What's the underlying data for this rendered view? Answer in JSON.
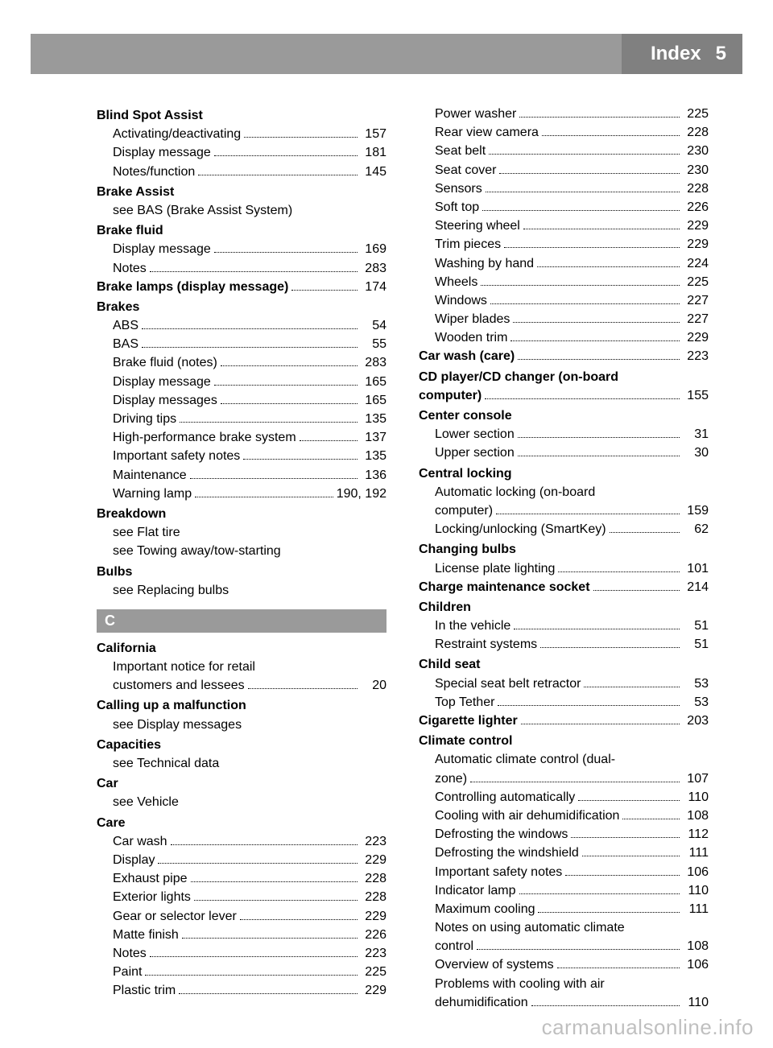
{
  "header": {
    "index_label": "Index",
    "page_number": "5"
  },
  "watermark": "carmanualsonline.info",
  "colors": {
    "top_bar": "#9a9a9a",
    "index_bar": "#808080",
    "header_text": "#ffffff",
    "section_bg": "#9a9a9a"
  },
  "col1": [
    {
      "type": "heading",
      "text": "Blind Spot Assist"
    },
    {
      "type": "sub",
      "text": "Activating/deactivating",
      "page": "157"
    },
    {
      "type": "sub",
      "text": "Display message",
      "page": "181"
    },
    {
      "type": "sub",
      "text": "Notes/function",
      "page": "145"
    },
    {
      "type": "heading",
      "text": "Brake Assist"
    },
    {
      "type": "subtext",
      "text": "see BAS (Brake Assist System)"
    },
    {
      "type": "heading",
      "text": "Brake fluid"
    },
    {
      "type": "sub",
      "text": "Display message",
      "page": "169"
    },
    {
      "type": "sub",
      "text": "Notes",
      "page": "283"
    },
    {
      "type": "boldrow",
      "text": "Brake lamps (display message)",
      "page": "174"
    },
    {
      "type": "heading",
      "text": "Brakes"
    },
    {
      "type": "sub",
      "text": "ABS",
      "page": "54"
    },
    {
      "type": "sub",
      "text": "BAS",
      "page": "55"
    },
    {
      "type": "sub",
      "text": "Brake fluid (notes)",
      "page": "283"
    },
    {
      "type": "sub",
      "text": "Display message",
      "page": "165"
    },
    {
      "type": "sub",
      "text": "Display messages",
      "page": "165"
    },
    {
      "type": "sub",
      "text": "Driving tips",
      "page": "135"
    },
    {
      "type": "sub",
      "text": "High-performance brake system",
      "page": "137"
    },
    {
      "type": "sub",
      "text": "Important safety notes",
      "page": "135"
    },
    {
      "type": "sub",
      "text": "Maintenance",
      "page": "136"
    },
    {
      "type": "sub",
      "text": "Warning lamp",
      "page": "190, 192"
    },
    {
      "type": "heading",
      "text": "Breakdown"
    },
    {
      "type": "subtext",
      "text": "see Flat tire"
    },
    {
      "type": "subtext",
      "text": "see Towing away/tow-starting"
    },
    {
      "type": "heading",
      "text": "Bulbs"
    },
    {
      "type": "subtext",
      "text": "see Replacing bulbs"
    },
    {
      "type": "section",
      "text": "C"
    },
    {
      "type": "heading",
      "text": "California"
    },
    {
      "type": "subtext",
      "text": "Important notice for retail"
    },
    {
      "type": "sub",
      "text": "customers and lessees",
      "page": "20"
    },
    {
      "type": "heading",
      "text": "Calling up a malfunction"
    },
    {
      "type": "subtext",
      "text": "see Display messages"
    },
    {
      "type": "heading",
      "text": "Capacities"
    },
    {
      "type": "subtext",
      "text": "see Technical data"
    },
    {
      "type": "heading",
      "text": "Car"
    },
    {
      "type": "subtext",
      "text": "see Vehicle"
    },
    {
      "type": "heading",
      "text": "Care"
    },
    {
      "type": "sub",
      "text": "Car wash",
      "page": "223"
    },
    {
      "type": "sub",
      "text": "Display",
      "page": "229"
    },
    {
      "type": "sub",
      "text": "Exhaust pipe",
      "page": "228"
    },
    {
      "type": "sub",
      "text": "Exterior lights",
      "page": "228"
    },
    {
      "type": "sub",
      "text": "Gear or selector lever",
      "page": "229"
    },
    {
      "type": "sub",
      "text": "Matte finish",
      "page": "226"
    },
    {
      "type": "sub",
      "text": "Notes",
      "page": "223"
    },
    {
      "type": "sub",
      "text": "Paint",
      "page": "225"
    },
    {
      "type": "sub",
      "text": "Plastic trim",
      "page": "229"
    }
  ],
  "col2": [
    {
      "type": "sub",
      "text": "Power washer",
      "page": "225"
    },
    {
      "type": "sub",
      "text": "Rear view camera",
      "page": "228"
    },
    {
      "type": "sub",
      "text": "Seat belt",
      "page": "230"
    },
    {
      "type": "sub",
      "text": "Seat cover",
      "page": "230"
    },
    {
      "type": "sub",
      "text": "Sensors",
      "page": "228"
    },
    {
      "type": "sub",
      "text": "Soft top",
      "page": "226"
    },
    {
      "type": "sub",
      "text": "Steering wheel",
      "page": "229"
    },
    {
      "type": "sub",
      "text": "Trim pieces",
      "page": "229"
    },
    {
      "type": "sub",
      "text": "Washing by hand",
      "page": "224"
    },
    {
      "type": "sub",
      "text": "Wheels",
      "page": "225"
    },
    {
      "type": "sub",
      "text": "Windows",
      "page": "227"
    },
    {
      "type": "sub",
      "text": "Wiper blades",
      "page": "227"
    },
    {
      "type": "sub",
      "text": "Wooden trim",
      "page": "229"
    },
    {
      "type": "boldrow",
      "text": "Car wash (care)",
      "page": "223"
    },
    {
      "type": "heading",
      "text": "CD player/CD changer (on-board"
    },
    {
      "type": "boldrow",
      "text": "computer)",
      "page": "155"
    },
    {
      "type": "heading",
      "text": "Center console"
    },
    {
      "type": "sub",
      "text": "Lower section",
      "page": "31"
    },
    {
      "type": "sub",
      "text": "Upper section",
      "page": "30"
    },
    {
      "type": "heading",
      "text": "Central locking"
    },
    {
      "type": "subtext",
      "text": "Automatic locking (on-board"
    },
    {
      "type": "sub",
      "text": "computer)",
      "page": "159"
    },
    {
      "type": "sub",
      "text": "Locking/unlocking (SmartKey)",
      "page": "62"
    },
    {
      "type": "heading",
      "text": "Changing bulbs"
    },
    {
      "type": "sub",
      "text": "License plate lighting",
      "page": "101"
    },
    {
      "type": "boldrow",
      "text": "Charge maintenance socket",
      "page": "214"
    },
    {
      "type": "heading",
      "text": "Children"
    },
    {
      "type": "sub",
      "text": "In the vehicle",
      "page": "51"
    },
    {
      "type": "sub",
      "text": "Restraint systems",
      "page": "51"
    },
    {
      "type": "heading",
      "text": "Child seat"
    },
    {
      "type": "sub",
      "text": "Special seat belt retractor",
      "page": "53"
    },
    {
      "type": "sub",
      "text": "Top Tether",
      "page": "53"
    },
    {
      "type": "boldrow",
      "text": "Cigarette lighter",
      "page": "203"
    },
    {
      "type": "heading",
      "text": "Climate control"
    },
    {
      "type": "subtext",
      "text": "Automatic climate control (dual-"
    },
    {
      "type": "sub",
      "text": "zone)",
      "page": "107"
    },
    {
      "type": "sub",
      "text": "Controlling automatically",
      "page": "110"
    },
    {
      "type": "sub",
      "text": "Cooling with air dehumidification",
      "page": "108"
    },
    {
      "type": "sub",
      "text": "Defrosting the windows",
      "page": "112"
    },
    {
      "type": "sub",
      "text": "Defrosting the windshield",
      "page": "111"
    },
    {
      "type": "sub",
      "text": "Important safety notes",
      "page": "106"
    },
    {
      "type": "sub",
      "text": "Indicator lamp",
      "page": "110"
    },
    {
      "type": "sub",
      "text": "Maximum cooling",
      "page": "111"
    },
    {
      "type": "subtext",
      "text": "Notes on using automatic climate"
    },
    {
      "type": "sub",
      "text": "control",
      "page": "108"
    },
    {
      "type": "sub",
      "text": "Overview of systems",
      "page": "106"
    },
    {
      "type": "subtext",
      "text": "Problems with cooling with air"
    },
    {
      "type": "sub",
      "text": "dehumidification",
      "page": "110"
    }
  ]
}
